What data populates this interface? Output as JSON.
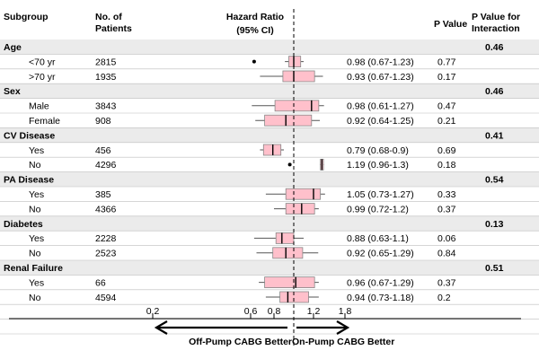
{
  "headers": {
    "subgroup": "Subgroup",
    "patients": [
      "No. of",
      "Patients"
    ],
    "hr": [
      "Hazard Ratio",
      "(95% CI)"
    ],
    "pvalue": "P Value",
    "pinteraction": [
      "P Value for",
      "Interaction"
    ]
  },
  "footer": {
    "left": "Off-Pump CABG Better",
    "right": "On-Pump CABG Better"
  },
  "colors": {
    "band": "#ebebeb",
    "box": "#ffc0cb",
    "box_stroke": "#888888",
    "whisker": "#555555"
  },
  "chart_data": {
    "type": "forest",
    "reference_line": 1.0,
    "xticks": [
      0.2,
      0.6,
      0.8,
      1.2,
      1.8
    ],
    "xtick_labels": [
      "0,2",
      "0,6",
      "0,8",
      "1,2",
      "1,8"
    ],
    "groups": [
      {
        "name": "Age",
        "p_interaction": "0.46",
        "rows": [
          {
            "label": "<70 yr",
            "n": "2815",
            "hr_text": "0.98 (0.67-1.23)",
            "p": "0.77",
            "box": [
              0.95,
              1.07
            ],
            "median": 1.0,
            "whisker": [
              0.91,
              1.1
            ],
            "outliers": [
              0.63
            ]
          },
          {
            "label": ">70 yr",
            "n": "1935",
            "hr_text": "0.93 (0.67-1.23)",
            "p": "0.17",
            "box": [
              0.89,
              1.22
            ],
            "median": 1.0,
            "whisker": [
              0.68,
              1.38
            ],
            "outliers": []
          }
        ]
      },
      {
        "name": "Sex",
        "p_interaction": "0.46",
        "rows": [
          {
            "label": "Male",
            "n": "3843",
            "hr_text": "0.98 (0.61-1.27)",
            "p": "0.47",
            "box": [
              0.81,
              1.3
            ],
            "median": 1.18,
            "whisker": [
              0.61,
              1.4
            ],
            "outliers": []
          },
          {
            "label": "Female",
            "n": "908",
            "hr_text": "0.92 (0.64-1.25)",
            "p": "0.21",
            "box": [
              0.72,
              1.18
            ],
            "median": 0.92,
            "whisker": [
              0.64,
              1.32
            ],
            "outliers": []
          }
        ]
      },
      {
        "name": "CV Disease",
        "p_interaction": "0.41",
        "rows": [
          {
            "label": "Yes",
            "n": "456",
            "hr_text": "0.79 (0.68-0.9)",
            "p": "0.69",
            "box": [
              0.71,
              0.87
            ],
            "median": 0.79,
            "whisker": [
              0.68,
              0.9
            ],
            "outliers": []
          },
          {
            "label": "No",
            "n": "4296",
            "hr_text": "1.19 (0.96-1.3)",
            "p": "0.18",
            "box": [
              1.33,
              1.39
            ],
            "median": 1.36,
            "whisker": [
              1.32,
              1.4
            ],
            "outliers": [
              0.96
            ]
          }
        ]
      },
      {
        "name": "PA Disease",
        "p_interaction": "0.54",
        "rows": [
          {
            "label": "Yes",
            "n": "385",
            "hr_text": "1.05 (0.73-1.27)",
            "p": "0.33",
            "box": [
              0.92,
              1.33
            ],
            "median": 1.2,
            "whisker": [
              0.73,
              1.42
            ],
            "outliers": []
          },
          {
            "label": "No",
            "n": "4366",
            "hr_text": "0.99 (0.72-1.2)",
            "p": "0.37",
            "box": [
              0.92,
              1.22
            ],
            "median": 1.08,
            "whisker": [
              0.8,
              1.3
            ],
            "outliers": []
          }
        ]
      },
      {
        "name": "Diabetes",
        "p_interaction": "0.13",
        "rows": [
          {
            "label": "Yes",
            "n": "2228",
            "hr_text": "0.88 (0.63-1.1)",
            "p": "0.06",
            "box": [
              0.82,
              1.0
            ],
            "median": 0.88,
            "whisker": [
              0.63,
              1.1
            ],
            "outliers": []
          },
          {
            "label": "No",
            "n": "2523",
            "hr_text": "0.92 (0.65-1.29)",
            "p": "0.84",
            "box": [
              0.79,
              1.09
            ],
            "median": 0.92,
            "whisker": [
              0.65,
              1.29
            ],
            "outliers": []
          }
        ]
      },
      {
        "name": "Renal Failure",
        "p_interaction": "0.51",
        "rows": [
          {
            "label": "Yes",
            "n": "66",
            "hr_text": "0.96 (0.67-1.29)",
            "p": "0.37",
            "box": [
              0.72,
              1.22
            ],
            "median": 1.02,
            "whisker": [
              0.67,
              1.3
            ],
            "outliers": []
          },
          {
            "label": "No",
            "n": "4594",
            "hr_text": "0.94 (0.73-1.18)",
            "p": "0.2",
            "box": [
              0.86,
              1.15
            ],
            "median": 0.94,
            "whisker": [
              0.73,
              1.3
            ],
            "outliers": []
          }
        ]
      }
    ]
  }
}
